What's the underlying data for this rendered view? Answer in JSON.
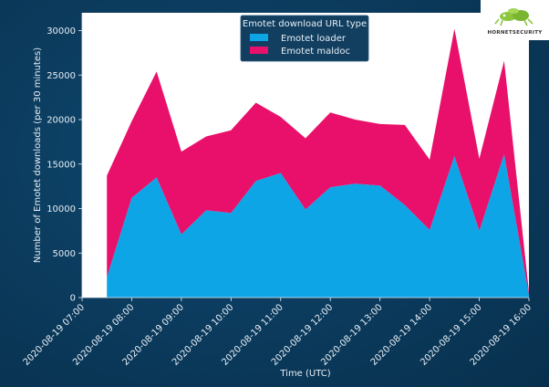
{
  "chart_data": {
    "type": "area",
    "stacked": true,
    "title": "",
    "xlabel": "Time (UTC)",
    "ylabel": "Number of Emotet downloads (per 30 minutes)",
    "ylim": [
      0,
      32000
    ],
    "xlim_hours": [
      7.0,
      16.0
    ],
    "yticks": [
      0,
      5000,
      10000,
      15000,
      20000,
      25000,
      30000
    ],
    "xticks": [
      {
        "hour": 7,
        "label": "2020-08-19 07:00"
      },
      {
        "hour": 8,
        "label": "2020-08-19 08:00"
      },
      {
        "hour": 9,
        "label": "2020-08-19 09:00"
      },
      {
        "hour": 10,
        "label": "2020-08-19 10:00"
      },
      {
        "hour": 11,
        "label": "2020-08-19 11:00"
      },
      {
        "hour": 12,
        "label": "2020-08-19 12:00"
      },
      {
        "hour": 13,
        "label": "2020-08-19 13:00"
      },
      {
        "hour": 14,
        "label": "2020-08-19 14:00"
      },
      {
        "hour": 15,
        "label": "2020-08-19 15:00"
      },
      {
        "hour": 16,
        "label": "2020-08-19 16:00"
      }
    ],
    "x_hours": [
      7.5,
      8.0,
      8.5,
      9.0,
      9.5,
      10.0,
      10.5,
      11.0,
      11.5,
      12.0,
      12.5,
      13.0,
      13.5,
      14.0,
      14.5,
      15.0,
      15.5,
      16.0
    ],
    "legend": {
      "title": "Emotet download URL type",
      "placement": "top-center"
    },
    "series": [
      {
        "name": "Emotet loader",
        "color": "#0ea5e6",
        "values": [
          2300,
          11200,
          13500,
          7100,
          9800,
          9500,
          13100,
          14000,
          9900,
          12400,
          12800,
          12600,
          10400,
          7600,
          15900,
          7500,
          16100,
          300
        ]
      },
      {
        "name": "Emotet maldoc",
        "color": "#e8106a",
        "values": [
          11400,
          8600,
          11900,
          9300,
          8300,
          9300,
          8800,
          6300,
          8000,
          8400,
          7200,
          6900,
          9000,
          7900,
          14300,
          8100,
          10500,
          300
        ]
      }
    ]
  },
  "logo": {
    "text": "HORNETSECURITY",
    "accent": "#8cc63f"
  }
}
